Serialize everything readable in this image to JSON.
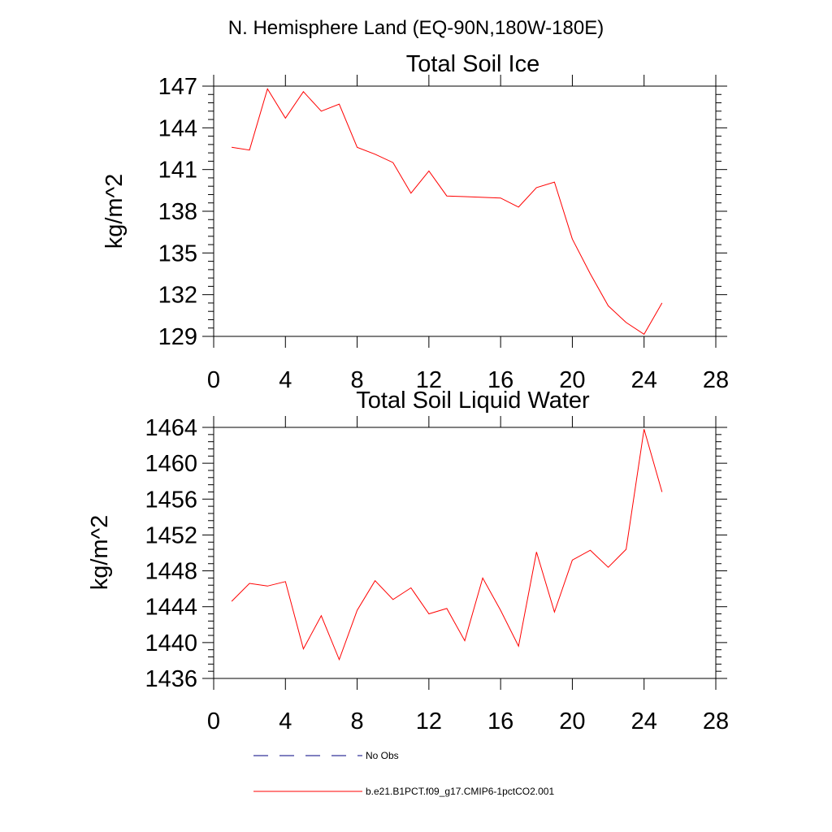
{
  "main_title": "N. Hemisphere Land (EQ-90N,180W-180E)",
  "colors": {
    "model": "#ff0000",
    "obs": "#000080",
    "axis": "#000000"
  },
  "legend": [
    {
      "label": "No Obs",
      "style": "dashed",
      "color": "#000080"
    },
    {
      "label": "b.e21.B1PCT.f09_g17.CMIP6-1pctCO2.001",
      "style": "solid",
      "color": "#ff0000"
    }
  ],
  "chart_data": [
    {
      "type": "line",
      "title": "Total Soil Ice",
      "xlabel": "",
      "ylabel": "kg/m^2",
      "xlim": [
        0,
        28
      ],
      "ylim": [
        129,
        147
      ],
      "xticks": [
        0,
        4,
        8,
        12,
        16,
        20,
        24,
        28
      ],
      "yticks": [
        129,
        132,
        135,
        138,
        141,
        144,
        147
      ],
      "grid": false,
      "series": [
        {
          "name": "b.e21.B1PCT.f09_g17.CMIP6-1pctCO2.001",
          "x": [
            1,
            2,
            3,
            4,
            5,
            6,
            7,
            8,
            9,
            10,
            11,
            12,
            13,
            14,
            15,
            16,
            17,
            18,
            19,
            20,
            21,
            22,
            23,
            24,
            25
          ],
          "y": [
            142.6,
            142.4,
            146.8,
            144.7,
            146.6,
            145.2,
            145.7,
            142.6,
            142.1,
            141.5,
            139.3,
            140.9,
            139.1,
            139.05,
            139.0,
            138.95,
            138.3,
            139.7,
            140.1,
            136.0,
            133.5,
            131.2,
            130.0,
            129.15,
            131.4
          ]
        }
      ]
    },
    {
      "type": "line",
      "title": "Total Soil Liquid Water",
      "xlabel": "",
      "ylabel": "kg/m^2",
      "xlim": [
        0,
        28
      ],
      "ylim": [
        1436,
        1464
      ],
      "xticks": [
        0,
        4,
        8,
        12,
        16,
        20,
        24,
        28
      ],
      "yticks": [
        1436,
        1440,
        1444,
        1448,
        1452,
        1456,
        1460,
        1464
      ],
      "grid": false,
      "series": [
        {
          "name": "b.e21.B1PCT.f09_g17.CMIP6-1pctCO2.001",
          "x": [
            1,
            2,
            3,
            4,
            5,
            6,
            7,
            8,
            9,
            10,
            11,
            12,
            13,
            14,
            15,
            16,
            17,
            18,
            19,
            20,
            21,
            22,
            23,
            24,
            25
          ],
          "y": [
            1444.6,
            1446.6,
            1446.3,
            1446.8,
            1439.3,
            1443.0,
            1438.1,
            1443.6,
            1446.9,
            1444.8,
            1446.1,
            1443.2,
            1443.8,
            1440.2,
            1447.2,
            1443.6,
            1439.6,
            1450.1,
            1443.4,
            1449.2,
            1450.3,
            1448.4,
            1450.4,
            1463.8,
            1456.8
          ]
        }
      ]
    }
  ]
}
